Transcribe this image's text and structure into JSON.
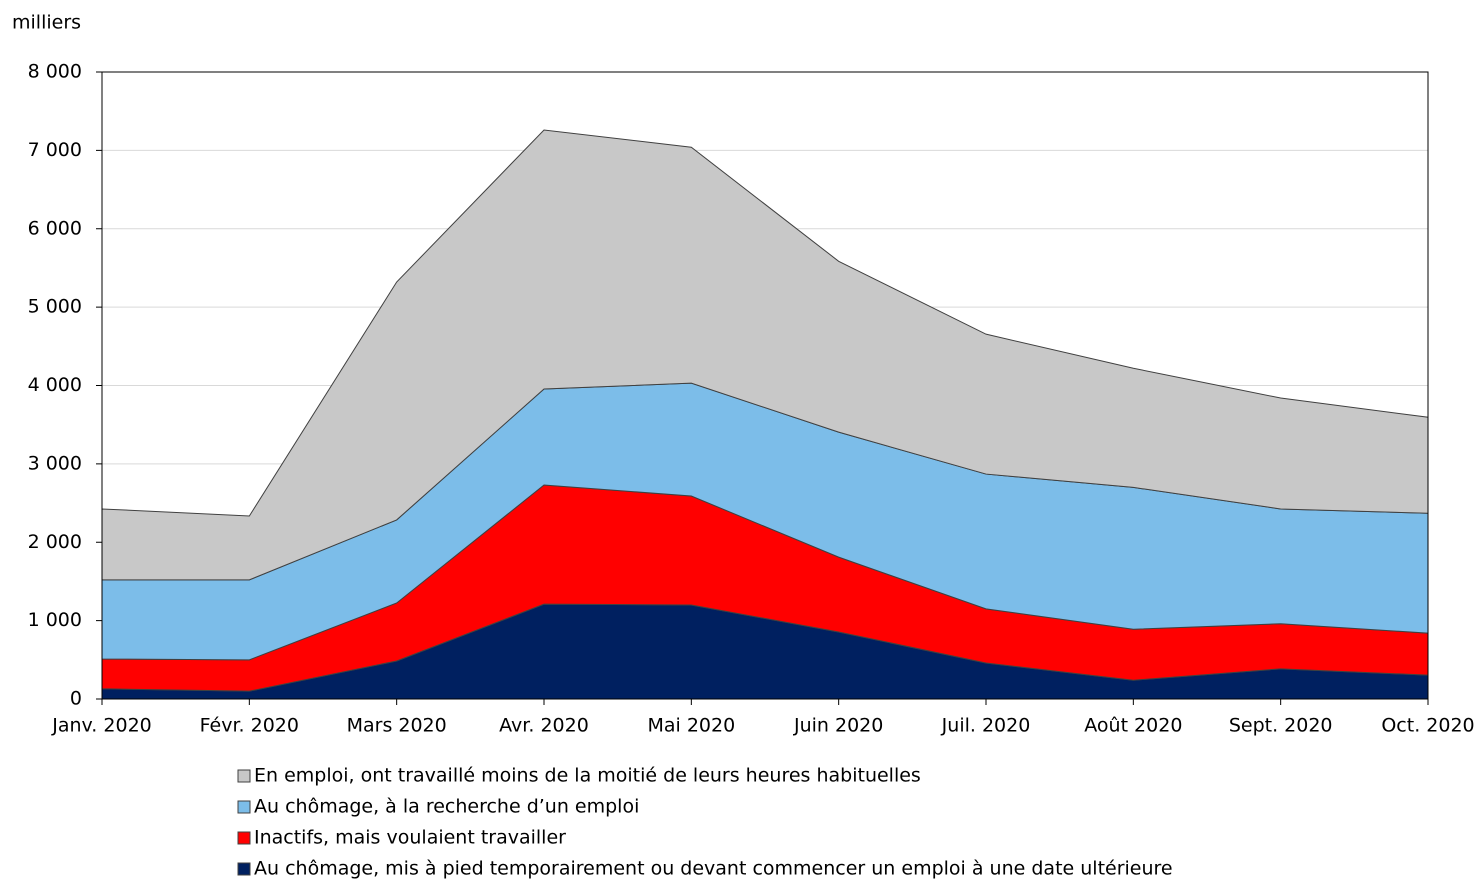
{
  "chart_data": {
    "type": "stacked_area",
    "ylabel": "milliers",
    "categories": [
      "Janv. 2020",
      "Févr. 2020",
      "Mars 2020",
      "Avr. 2020",
      "Mai 2020",
      "Juin 2020",
      "Juil. 2020",
      "Août 2020",
      "Sept. 2020",
      "Oct. 2020"
    ],
    "series": [
      {
        "name": "Au chômage, mis à pied temporairement ou devant commencer un emploi à une date ultérieure",
        "color": "#002060",
        "values": [
          130,
          100,
          485,
          1210,
          1200,
          855,
          460,
          240,
          385,
          305
        ]
      },
      {
        "name": "Inactifs, mais voulaient travailler",
        "color": "#ff0000",
        "values": [
          380,
          400,
          740,
          1520,
          1390,
          955,
          690,
          650,
          575,
          535
        ]
      },
      {
        "name": "Au chômage, à la recherche d’un emploi",
        "color": "#7cbde9",
        "values": [
          1010,
          1020,
          1060,
          1225,
          1440,
          1595,
          1720,
          1810,
          1465,
          1530
        ]
      },
      {
        "name": "En emploi, ont travaillé moins de la moitié de leurs heures habituelles",
        "color": "#c8c8c8",
        "values": [
          905,
          815,
          3035,
          3305,
          3010,
          2180,
          1785,
          1520,
          1415,
          1225
        ]
      }
    ],
    "ylim": [
      0,
      8000
    ],
    "yticks": [
      0,
      {
        "value": 1000,
        "label": "1 000"
      },
      {
        "value": 2000,
        "label": "2 000"
      },
      {
        "value": 3000,
        "label": "3 000"
      },
      {
        "value": 4000,
        "label": "4 000"
      },
      {
        "value": 5000,
        "label": "5 000"
      },
      {
        "value": 6000,
        "label": "6 000"
      },
      {
        "value": 7000,
        "label": "7 000"
      },
      {
        "value": 8000,
        "label": "8 000"
      }
    ],
    "grid": true
  }
}
